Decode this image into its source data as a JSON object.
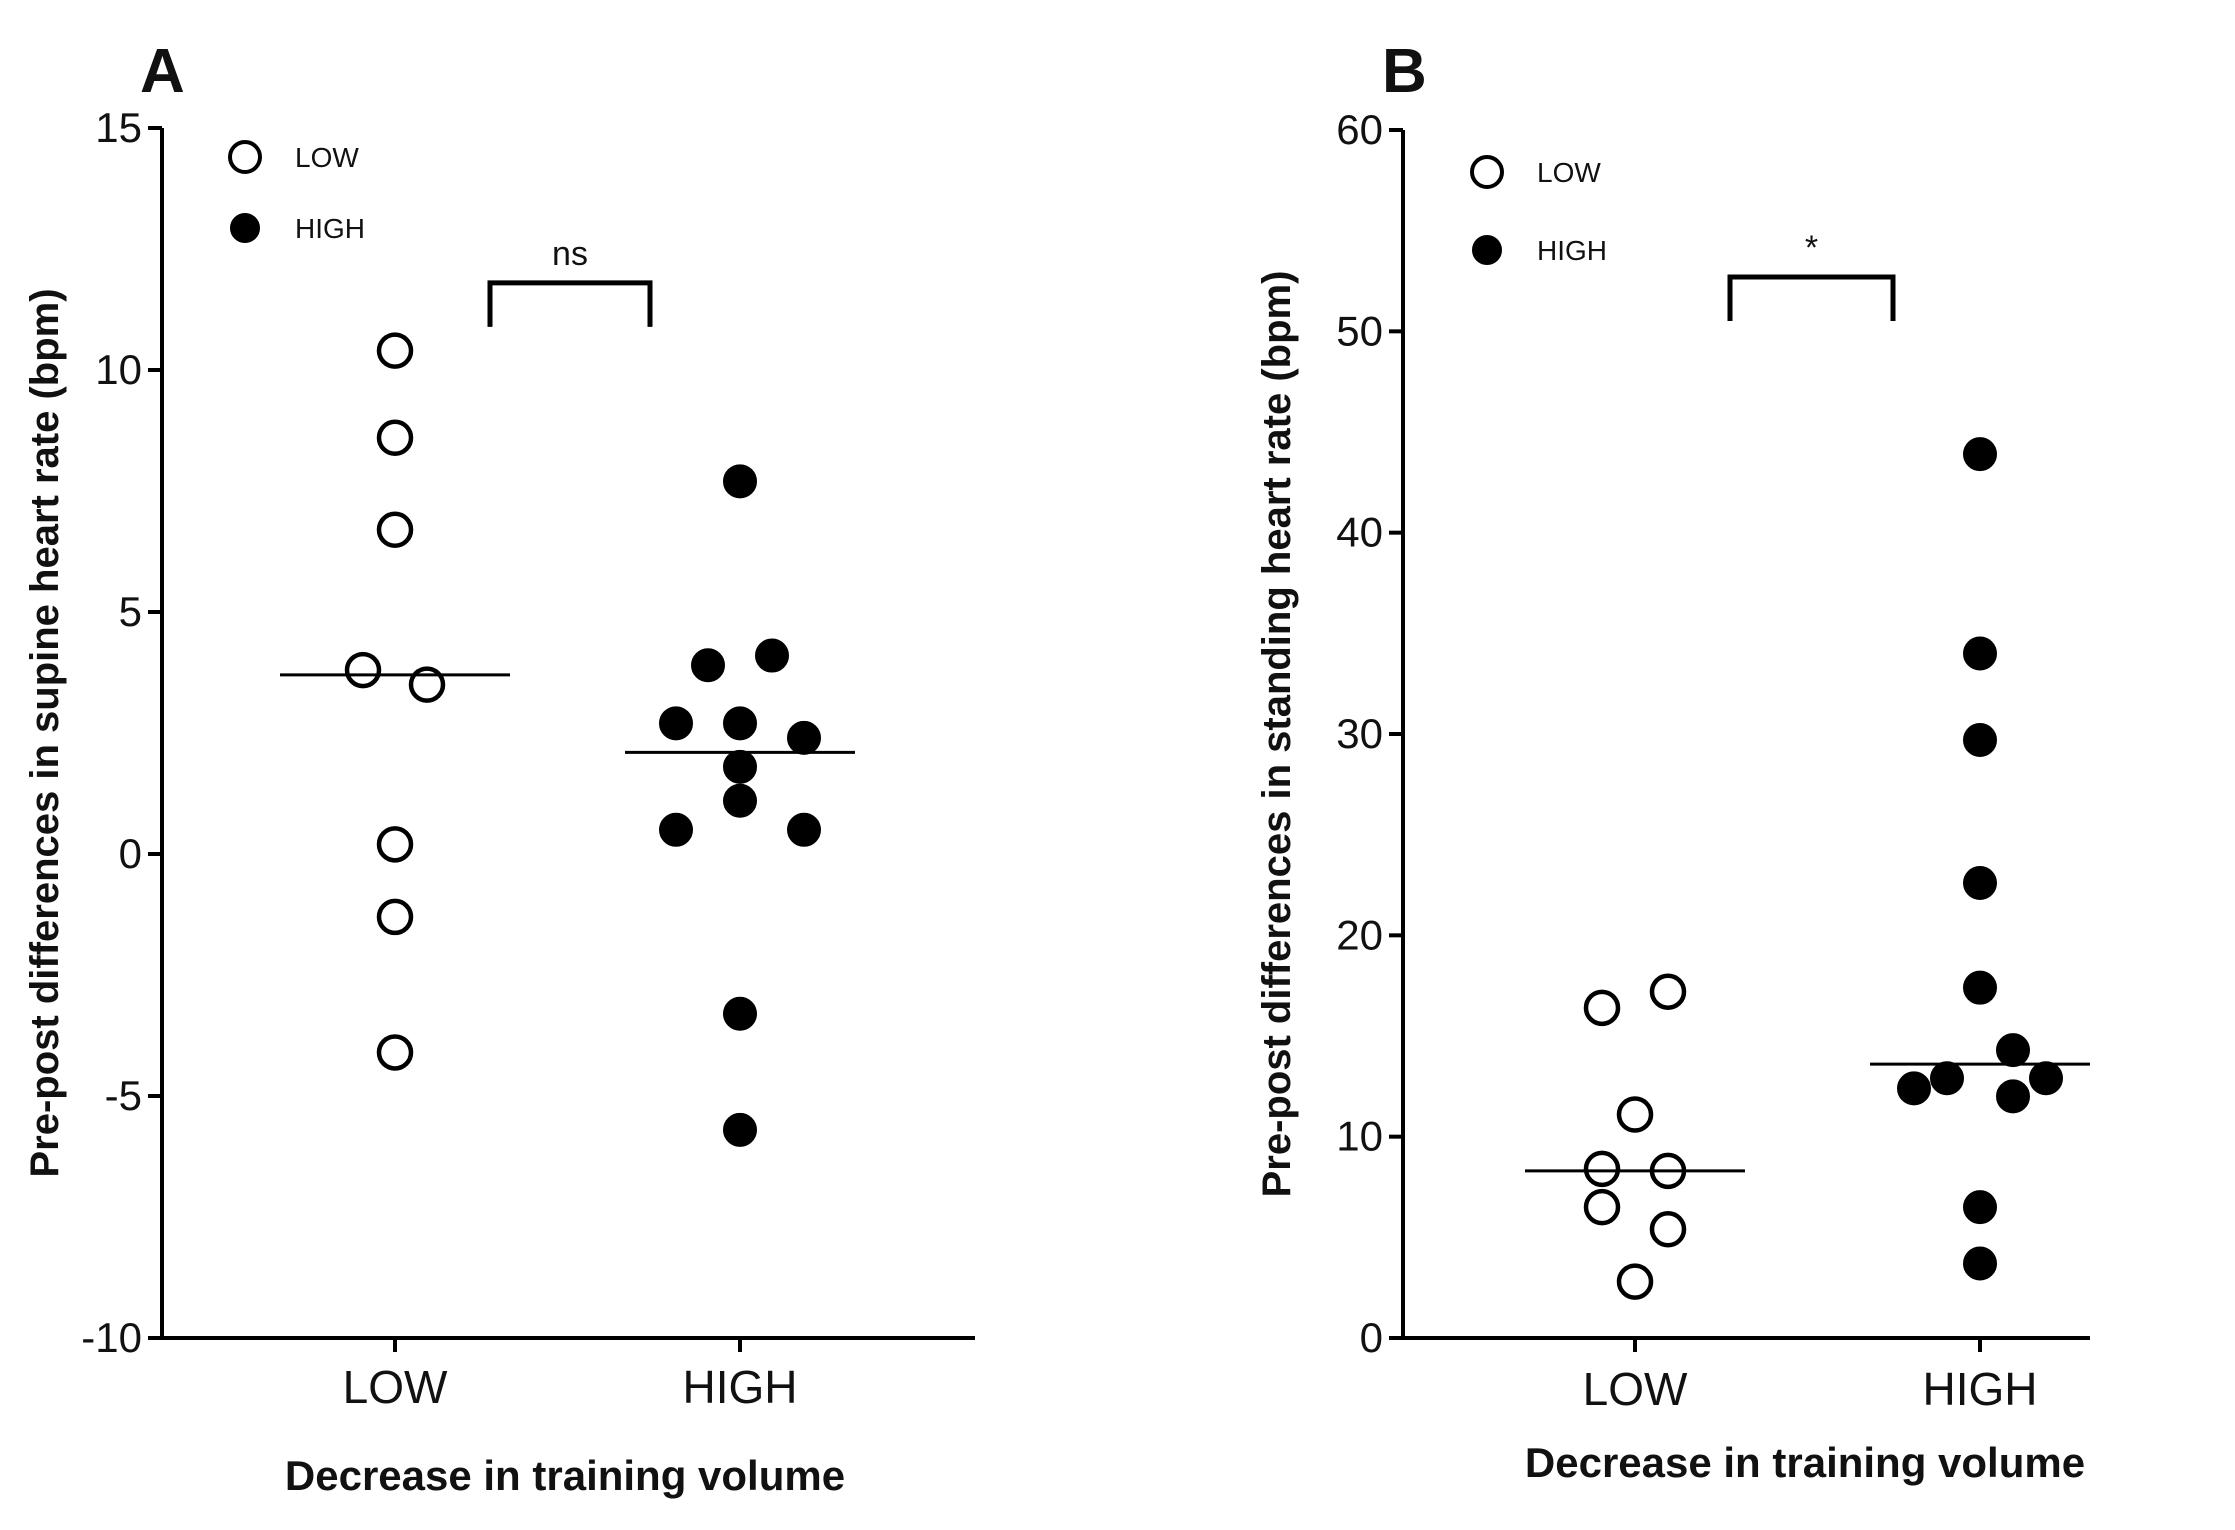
{
  "chart_data": [
    {
      "type": "scatter",
      "panel": "A",
      "title": "",
      "xlabel": "Decrease in training volume",
      "ylabel": "Pre-post differences in supine heart rate (bpm)",
      "ylim": [
        -10,
        15
      ],
      "yticks": [
        -10,
        -5,
        0,
        5,
        10,
        15
      ],
      "ytick_labels": [
        "-10",
        "-5",
        "0",
        "5",
        "10",
        "15"
      ],
      "categories": [
        "LOW",
        "HIGH"
      ],
      "legend": [
        {
          "label": "LOW",
          "marker": "open-circle"
        },
        {
          "label": "HIGH",
          "marker": "filled-circle"
        }
      ],
      "legend_position": "top-left",
      "series": [
        {
          "name": "LOW",
          "category": "LOW",
          "marker": "open",
          "values": [
            10.4,
            8.6,
            6.7,
            3.8,
            3.5,
            0.2,
            -1.3,
            -4.1
          ],
          "offsets": [
            0,
            0,
            0,
            -1,
            1,
            0,
            0,
            0
          ],
          "median": 3.7
        },
        {
          "name": "HIGH",
          "category": "HIGH",
          "marker": "filled",
          "values": [
            7.7,
            4.1,
            3.9,
            2.7,
            2.7,
            2.4,
            1.8,
            1.1,
            0.5,
            0.5,
            -3.3,
            -5.7
          ],
          "offsets": [
            0,
            1,
            -1,
            -2,
            0,
            2,
            0,
            0,
            -2,
            2,
            0,
            0
          ],
          "median": 2.1
        }
      ],
      "significance": {
        "label": "ns",
        "y": 11.8
      }
    },
    {
      "type": "scatter",
      "panel": "B",
      "title": "",
      "xlabel": "Decrease in training volume",
      "ylabel": "Pre-post differences in standing heart rate (bpm)",
      "ylim": [
        0,
        60
      ],
      "yticks": [
        0,
        10,
        20,
        30,
        40,
        50,
        60
      ],
      "ytick_labels": [
        "0",
        "10",
        "20",
        "30",
        "40",
        "50",
        "60"
      ],
      "categories": [
        "LOW",
        "HIGH"
      ],
      "legend": [
        {
          "label": "LOW",
          "marker": "open-circle"
        },
        {
          "label": "HIGH",
          "marker": "filled-circle"
        }
      ],
      "legend_position": "top-left",
      "series": [
        {
          "name": "LOW",
          "category": "LOW",
          "marker": "open",
          "values": [
            17.2,
            16.4,
            11.1,
            8.4,
            8.3,
            6.5,
            5.4,
            2.8
          ],
          "offsets": [
            1,
            -1,
            0,
            -1,
            1,
            -1,
            1,
            0
          ],
          "median": 8.3
        },
        {
          "name": "HIGH",
          "category": "HIGH",
          "marker": "filled",
          "values": [
            43.9,
            34.0,
            29.7,
            22.6,
            17.4,
            14.3,
            12.9,
            12.9,
            12.4,
            12.0,
            6.5,
            3.7
          ],
          "offsets": [
            0,
            0,
            0,
            0,
            0,
            1,
            -1,
            2,
            -2,
            1,
            0,
            0
          ],
          "median": 13.6
        }
      ],
      "significance": {
        "label": "*",
        "y": 52.7
      }
    }
  ]
}
